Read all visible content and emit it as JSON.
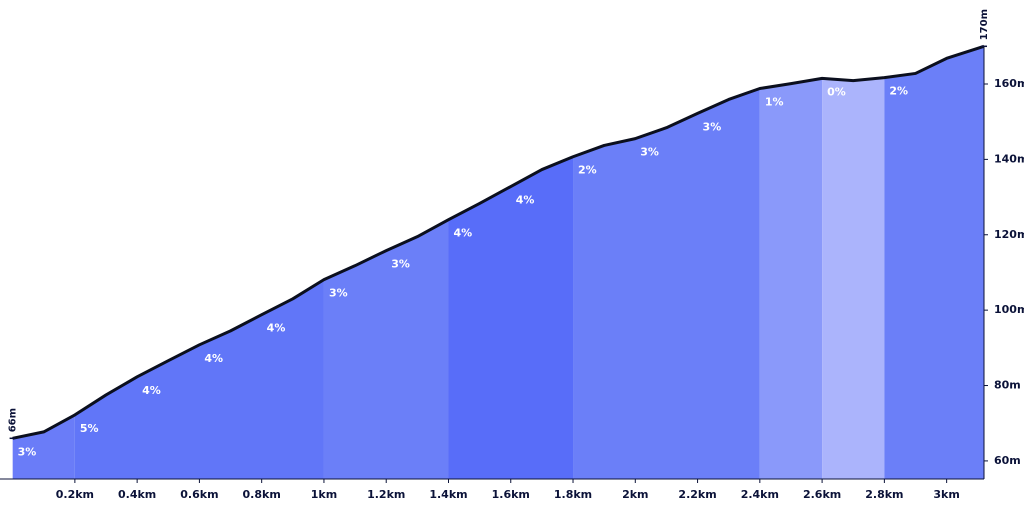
{
  "chart_data": {
    "type": "area",
    "x": [
      0,
      0.1,
      0.2,
      0.3,
      0.4,
      0.5,
      0.6,
      0.7,
      0.8,
      0.9,
      1.0,
      1.1,
      1.2,
      1.3,
      1.4,
      1.5,
      1.6,
      1.7,
      1.8,
      1.9,
      2.0,
      2.1,
      2.2,
      2.3,
      2.4,
      2.5,
      2.6,
      2.7,
      2.8,
      2.9,
      3.0,
      3.12
    ],
    "values": [
      66,
      67.7,
      72.2,
      77.5,
      82.3,
      86.6,
      90.8,
      94.5,
      98.8,
      103.0,
      108.1,
      111.8,
      115.8,
      119.5,
      124.0,
      128.3,
      132.8,
      137.3,
      140.7,
      143.7,
      145.5,
      148.4,
      152.2,
      155.9,
      158.8,
      160.1,
      161.5,
      160.9,
      161.7,
      162.8,
      166.8,
      170
    ],
    "line_color": "#0b0f1e",
    "xlim": [
      0,
      3.12
    ],
    "ylim": [
      55.2,
      170
    ],
    "xticks": [
      {
        "value": 0.2,
        "label": "0.2km"
      },
      {
        "value": 0.4,
        "label": "0.4km"
      },
      {
        "value": 0.6,
        "label": "0.6km"
      },
      {
        "value": 0.8,
        "label": "0.8km"
      },
      {
        "value": 1,
        "label": "1km"
      },
      {
        "value": 1.2,
        "label": "1.2km"
      },
      {
        "value": 1.4,
        "label": "1.4km"
      },
      {
        "value": 1.6,
        "label": "1.6km"
      },
      {
        "value": 1.8,
        "label": "1.8km"
      },
      {
        "value": 2,
        "label": "2km"
      },
      {
        "value": 2.2,
        "label": "2.2km"
      },
      {
        "value": 2.4,
        "label": "2.4km"
      },
      {
        "value": 2.6,
        "label": "2.6km"
      },
      {
        "value": 2.8,
        "label": "2.8km"
      },
      {
        "value": 3,
        "label": "3km"
      }
    ],
    "yticks": [
      {
        "value": 60,
        "label": "60m"
      },
      {
        "value": 80,
        "label": "80m"
      },
      {
        "value": 100,
        "label": "100m"
      },
      {
        "value": 120,
        "label": "120m"
      },
      {
        "value": 140,
        "label": "140m"
      },
      {
        "value": 160,
        "label": "160m"
      }
    ],
    "endpoint_labels": [
      {
        "value": 66,
        "label": "66m"
      },
      {
        "value": 170,
        "label": "170m"
      }
    ],
    "bands": [
      {
        "from": 0,
        "to": 0.2,
        "color": "#6a7cf8"
      },
      {
        "from": 0.2,
        "to": 1.0,
        "color": "#6176f8"
      },
      {
        "from": 1.0,
        "to": 1.4,
        "color": "#6b7ff8"
      },
      {
        "from": 1.4,
        "to": 1.8,
        "color": "#586df9"
      },
      {
        "from": 1.8,
        "to": 2.4,
        "color": "#6b7ff8"
      },
      {
        "from": 2.4,
        "to": 2.6,
        "color": "#8a99fa"
      },
      {
        "from": 2.6,
        "to": 2.8,
        "color": "#abb4fc"
      },
      {
        "from": 2.8,
        "to": 3.12,
        "color": "#6b7ff8"
      }
    ],
    "grades": {
      "x": [
        0,
        0.2,
        0.4,
        0.6,
        0.8,
        1.0,
        1.2,
        1.4,
        1.6,
        1.8,
        2.0,
        2.2,
        2.4,
        2.6,
        2.8
      ],
      "values": [
        3,
        5,
        4,
        4,
        4,
        3,
        3,
        4,
        4,
        2,
        3,
        3,
        1,
        0,
        2
      ],
      "value_labels": [
        "3%",
        "5%",
        "4%",
        "4%",
        "4%",
        "3%",
        "3%",
        "4%",
        "4%",
        "2%",
        "3%",
        "3%",
        "1%",
        "0%",
        "2%"
      ]
    }
  }
}
